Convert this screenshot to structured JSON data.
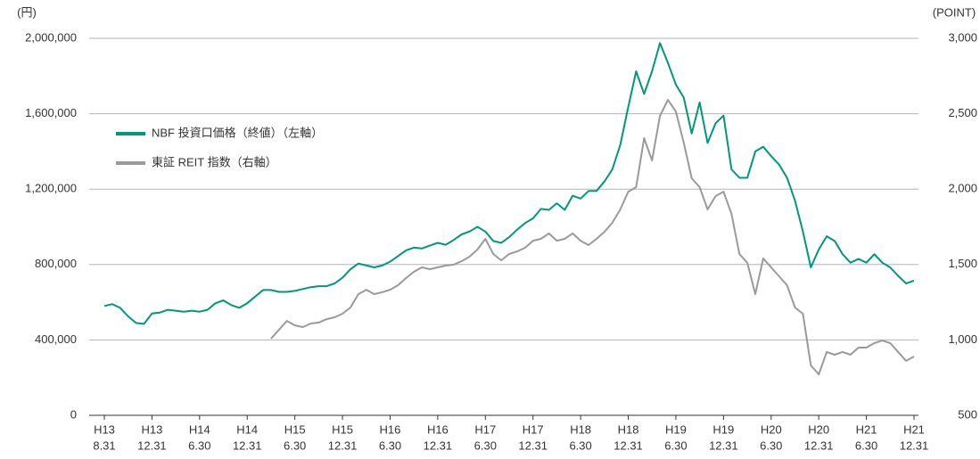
{
  "chart_data": {
    "type": "line",
    "ylabel": "(円)",
    "y2label": "(POINT)",
    "categories": [
      [
        "H13",
        "8.31"
      ],
      null,
      null,
      null,
      null,
      null,
      [
        "H13",
        "12.31"
      ],
      null,
      null,
      null,
      null,
      null,
      [
        "H14",
        "6.30"
      ],
      null,
      null,
      null,
      null,
      null,
      [
        "H14",
        "12.31"
      ],
      null,
      null,
      null,
      null,
      null,
      [
        "H15",
        "6.30"
      ],
      null,
      null,
      null,
      null,
      null,
      [
        "H15",
        "12.31"
      ],
      null,
      null,
      null,
      null,
      null,
      [
        "H16",
        "6.30"
      ],
      null,
      null,
      null,
      null,
      null,
      [
        "H16",
        "12.31"
      ],
      null,
      null,
      null,
      null,
      null,
      [
        "H17",
        "6.30"
      ],
      null,
      null,
      null,
      null,
      null,
      [
        "H17",
        "12.31"
      ],
      null,
      null,
      null,
      null,
      null,
      [
        "H18",
        "6.30"
      ],
      null,
      null,
      null,
      null,
      null,
      [
        "H18",
        "12.31"
      ],
      null,
      null,
      null,
      null,
      null,
      [
        "H19",
        "6.30"
      ],
      null,
      null,
      null,
      null,
      null,
      [
        "H19",
        "12.31"
      ],
      null,
      null,
      null,
      null,
      null,
      [
        "H20",
        "6.30"
      ],
      null,
      null,
      null,
      null,
      null,
      [
        "H20",
        "12.31"
      ],
      null,
      null,
      null,
      null,
      null,
      [
        "H21",
        "6.30"
      ],
      null,
      null,
      null,
      null,
      null,
      [
        "H21",
        "12.31"
      ]
    ],
    "series": [
      {
        "name": "NBF 投資口価格（終値）（左軸）",
        "color": "#00977c",
        "axis": "y",
        "values": [
          580000,
          590000,
          570000,
          525000,
          490000,
          485000,
          540000,
          545000,
          560000,
          555000,
          550000,
          555000,
          550000,
          560000,
          595000,
          610000,
          585000,
          570000,
          595000,
          630000,
          665000,
          665000,
          655000,
          655000,
          660000,
          670000,
          680000,
          685000,
          685000,
          700000,
          730000,
          775000,
          805000,
          795000,
          785000,
          795000,
          815000,
          845000,
          875000,
          890000,
          885000,
          900000,
          915000,
          905000,
          930000,
          960000,
          975000,
          1000000,
          975000,
          925000,
          915000,
          945000,
          985000,
          1020000,
          1045000,
          1095000,
          1090000,
          1125000,
          1090000,
          1165000,
          1150000,
          1190000,
          1190000,
          1240000,
          1305000,
          1435000,
          1635000,
          1825000,
          1705000,
          1825000,
          1975000,
          1870000,
          1755000,
          1685000,
          1495000,
          1660000,
          1445000,
          1550000,
          1590000,
          1305000,
          1260000,
          1260000,
          1400000,
          1425000,
          1375000,
          1330000,
          1260000,
          1140000,
          975000,
          785000,
          880000,
          950000,
          925000,
          855000,
          810000,
          830000,
          810000,
          855000,
          810000,
          785000,
          740000,
          700000,
          715000
        ]
      },
      {
        "name": "東証 REIT 指数（右軸）",
        "color": "#9a9a9a",
        "axis": "y2",
        "values": [
          null,
          null,
          null,
          null,
          null,
          null,
          null,
          null,
          null,
          null,
          null,
          null,
          null,
          null,
          null,
          null,
          null,
          null,
          null,
          null,
          null,
          1008,
          1067,
          1126,
          1097,
          1085,
          1109,
          1115,
          1138,
          1150,
          1174,
          1215,
          1304,
          1333,
          1304,
          1316,
          1333,
          1363,
          1410,
          1452,
          1481,
          1469,
          1481,
          1493,
          1499,
          1522,
          1552,
          1599,
          1670,
          1570,
          1528,
          1570,
          1587,
          1611,
          1658,
          1670,
          1706,
          1658,
          1670,
          1706,
          1658,
          1629,
          1670,
          1717,
          1777,
          1865,
          1983,
          2013,
          2338,
          2190,
          2486,
          2592,
          2515,
          2308,
          2072,
          2013,
          1865,
          1954,
          1983,
          1836,
          1570,
          1511,
          1304,
          1540,
          1481,
          1422,
          1363,
          1215,
          1174,
          831,
          772,
          920,
          902,
          920,
          902,
          949,
          949,
          979,
          996,
          979,
          920,
          861,
          890
        ]
      }
    ],
    "ylim": [
      0,
      2000000
    ],
    "yticks": [
      0,
      {
        "value": 400000,
        "label": "400,000"
      },
      {
        "value": 800000,
        "label": "800,000"
      },
      {
        "value": 1200000,
        "label": "1,200,000"
      },
      {
        "value": 1600000,
        "label": "1,600,000"
      },
      {
        "value": 2000000,
        "label": "2,000,000"
      }
    ],
    "y2lim": [
      500,
      3000
    ],
    "y2ticks": [
      500,
      {
        "value": 1000,
        "label": "1,000"
      },
      {
        "value": 1500,
        "label": "1,500"
      },
      {
        "value": 2000,
        "label": "2,000"
      },
      {
        "value": 2500,
        "label": "2,500"
      },
      {
        "value": 3000,
        "label": "3,000"
      }
    ],
    "grid": true,
    "legend": "upper left"
  }
}
